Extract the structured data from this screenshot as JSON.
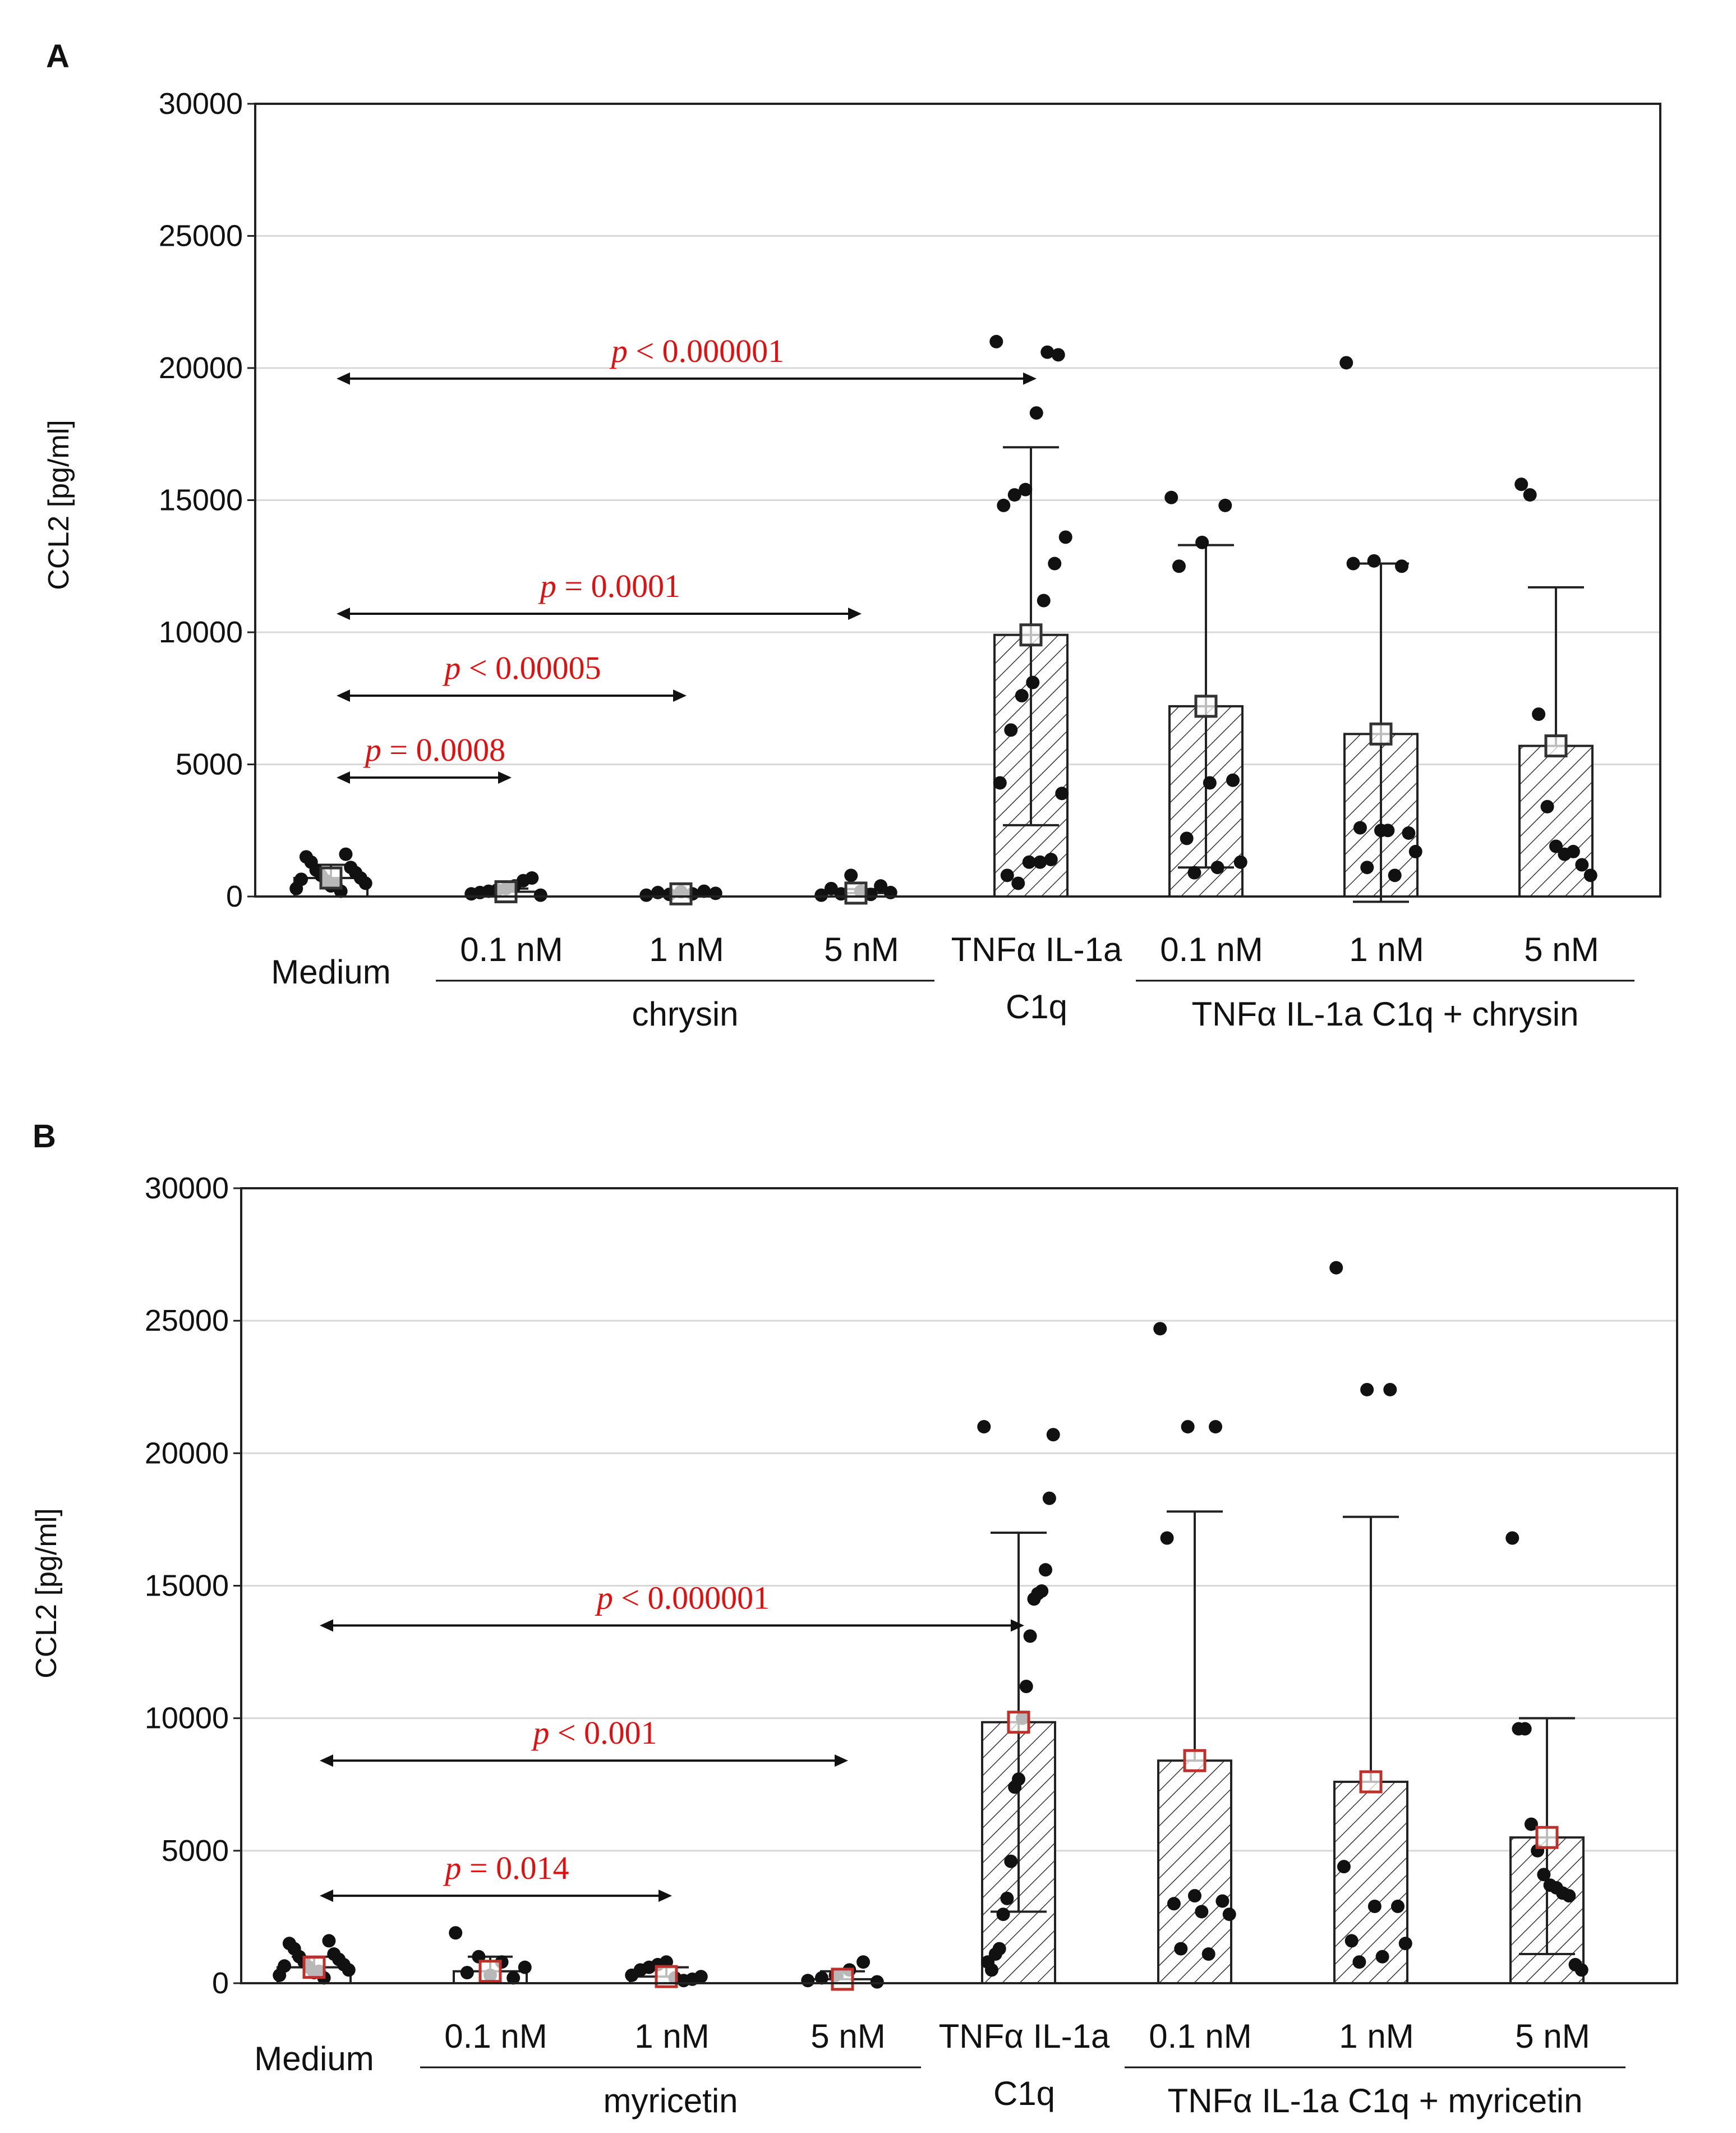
{
  "panels": [
    {
      "panel_label": "A",
      "chart_data": {
        "type": "bar",
        "ylabel": "CCL2 [pg/ml]",
        "ylim": [
          0,
          30000
        ],
        "yticks": [
          0,
          5000,
          10000,
          15000,
          20000,
          25000,
          30000
        ],
        "grid": true,
        "categories": [
          "Medium",
          "0.1 nM",
          "1 nM",
          "5 nM",
          "TNFα IL-1a\nC1q",
          "0.1 nM",
          "1 nM",
          "5 nM"
        ],
        "tick_labels": [
          {
            "lines": [
              "Medium"
            ]
          },
          {
            "lines": [
              "0.1 nM"
            ]
          },
          {
            "lines": [
              "1 nM"
            ]
          },
          {
            "lines": [
              "5 nM"
            ]
          },
          {
            "lines": [
              "TNFα IL-1a",
              "C1q"
            ]
          },
          {
            "lines": [
              "0.1 nM"
            ]
          },
          {
            "lines": [
              "1 nM"
            ]
          },
          {
            "lines": [
              "5 nM"
            ]
          }
        ],
        "group_labels": [
          {
            "label": "chrysin",
            "from": 1,
            "to": 3
          },
          {
            "label": "TNFα IL-1a C1q + chrysin",
            "from": 5,
            "to": 7
          }
        ],
        "means": [
          700,
          180,
          100,
          130,
          9900,
          7200,
          6150,
          5700
        ],
        "sd_upper": [
          1200,
          300,
          180,
          280,
          17000,
          13300,
          12600,
          11700
        ],
        "sd_lower": [
          200,
          60,
          20,
          0,
          2700,
          1100,
          -200,
          0
        ],
        "show_lower_whisker": [
          false,
          false,
          false,
          false,
          true,
          true,
          true,
          false
        ],
        "hatched": [
          false,
          false,
          false,
          false,
          true,
          true,
          true,
          true
        ],
        "mean_marker_color": "#333333",
        "points": [
          [
            300,
            400,
            500,
            600,
            700,
            800,
            900,
            1000,
            1100,
            1300,
            1600,
            1500,
            200,
            650,
            450
          ],
          [
            100,
            150,
            200,
            250,
            300,
            400,
            600,
            700,
            50
          ],
          [
            50,
            80,
            100,
            120,
            150,
            180,
            200
          ],
          [
            50,
            80,
            100,
            150,
            200,
            300,
            400,
            800
          ],
          [
            21000,
            20500,
            20600,
            18300,
            15400,
            15200,
            14800,
            13600,
            12600,
            11200,
            8100,
            7600,
            6300,
            4300,
            3900,
            1400,
            1300,
            1300,
            500,
            800
          ],
          [
            15100,
            14800,
            13400,
            12500,
            4400,
            4300,
            2200,
            1300,
            1100,
            900
          ],
          [
            20200,
            12700,
            12500,
            12600,
            2500,
            2400,
            2600,
            2500,
            1700,
            1100,
            800
          ],
          [
            15600,
            15200,
            6900,
            3400,
            1900,
            1600,
            1700,
            1200,
            800
          ]
        ],
        "comparisons": [
          {
            "label": "p = 0.0008",
            "from": 0,
            "to": 1,
            "level": 4500
          },
          {
            "label": "p < 0.00005",
            "from": 0,
            "to": 2,
            "level": 7600
          },
          {
            "label": "p = 0.0001",
            "from": 0,
            "to": 3,
            "level": 10700
          },
          {
            "label": "p < 0.000001",
            "from": 0,
            "to": 4,
            "level": 19600
          }
        ]
      }
    },
    {
      "panel_label": "B",
      "chart_data": {
        "type": "bar",
        "ylabel": "CCL2 [pg/ml]",
        "ylim": [
          0,
          30000
        ],
        "yticks": [
          0,
          5000,
          10000,
          15000,
          20000,
          25000,
          30000
        ],
        "grid": true,
        "categories": [
          "Medium",
          "0.1 nM",
          "1 nM",
          "5 nM",
          "TNFα IL-1a\nC1q",
          "0.1 nM",
          "1 nM",
          "5 nM"
        ],
        "tick_labels": [
          {
            "lines": [
              "Medium"
            ]
          },
          {
            "lines": [
              "0.1 nM"
            ]
          },
          {
            "lines": [
              "1 nM"
            ]
          },
          {
            "lines": [
              "5 nM"
            ]
          },
          {
            "lines": [
              "TNFα IL-1a",
              "C1q"
            ]
          },
          {
            "lines": [
              "0.1 nM"
            ]
          },
          {
            "lines": [
              "1 nM"
            ]
          },
          {
            "lines": [
              "5 nM"
            ]
          }
        ],
        "group_labels": [
          {
            "label": "myricetin",
            "from": 1,
            "to": 3
          },
          {
            "label": "TNFα IL-1a C1q + myricetin",
            "from": 5,
            "to": 7
          }
        ],
        "means": [
          600,
          450,
          250,
          150,
          9850,
          8400,
          7600,
          5500
        ],
        "sd_upper": [
          1000,
          1000,
          600,
          450,
          17000,
          17800,
          17600,
          10000
        ],
        "sd_lower": [
          200,
          0,
          0,
          0,
          2700,
          0,
          0,
          1100
        ],
        "show_lower_whisker": [
          false,
          false,
          false,
          false,
          true,
          false,
          false,
          true
        ],
        "hatched": [
          false,
          false,
          false,
          false,
          true,
          true,
          true,
          true
        ],
        "mean_marker_color": "#c0302b",
        "points": [
          [
            300,
            400,
            500,
            600,
            700,
            800,
            900,
            1000,
            1100,
            1300,
            1600,
            1500,
            200,
            650,
            450
          ],
          [
            1900,
            1000,
            800,
            600,
            400,
            300,
            200
          ],
          [
            300,
            500,
            600,
            700,
            800,
            200,
            100,
            150,
            250
          ],
          [
            100,
            200,
            300,
            500,
            800,
            50
          ],
          [
            21000,
            20700,
            18300,
            15600,
            14800,
            14700,
            14500,
            13100,
            11200,
            10000,
            7700,
            7400,
            4600,
            3200,
            2600,
            1300,
            1100,
            500,
            800
          ],
          [
            24700,
            21000,
            21000,
            16800,
            3300,
            3100,
            3000,
            2700,
            2600,
            1300,
            1100
          ],
          [
            27000,
            22400,
            22400,
            4400,
            2900,
            2900,
            1600,
            1500,
            1000,
            800
          ],
          [
            16800,
            9600,
            9600,
            6000,
            5000,
            4100,
            3700,
            3600,
            3400,
            3300,
            700,
            500
          ]
        ],
        "comparisons": [
          {
            "label": "p = 0.014",
            "from": 0,
            "to": 2,
            "level": 3300
          },
          {
            "label": "p < 0.001",
            "from": 0,
            "to": 3,
            "level": 8400
          },
          {
            "label": "p < 0.000001",
            "from": 0,
            "to": 4,
            "level": 13500
          }
        ]
      }
    }
  ]
}
